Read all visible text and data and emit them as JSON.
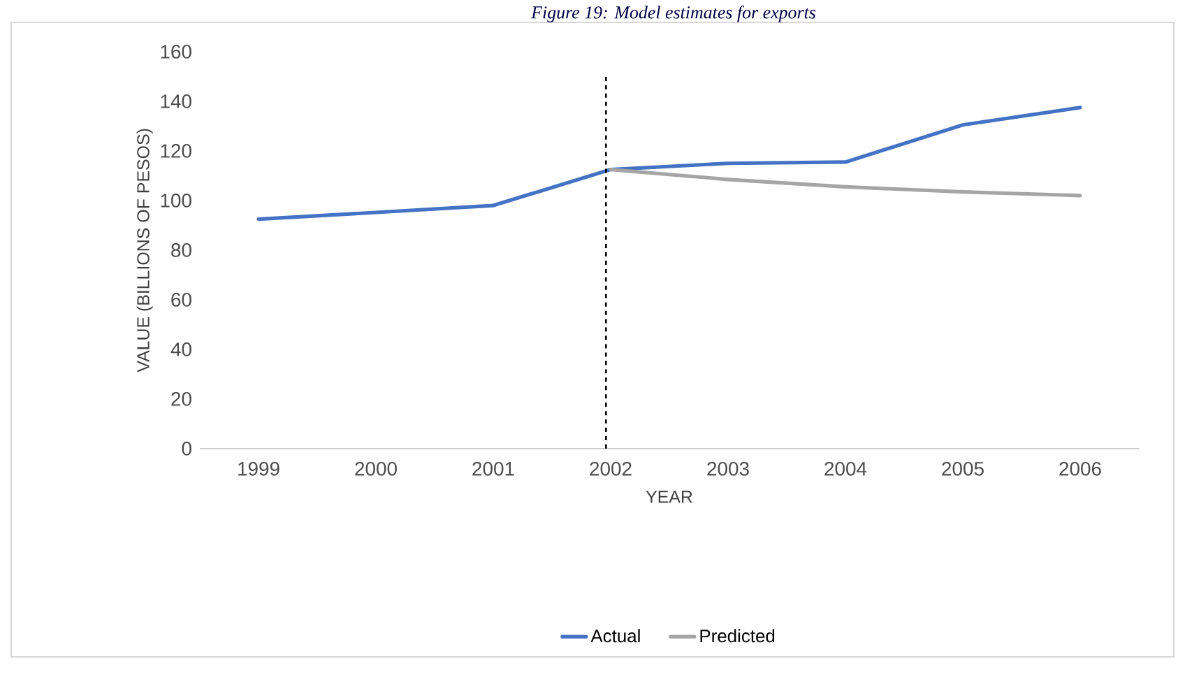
{
  "chart_data": {
    "type": "line",
    "title": "Figure 19: Model estimates for exports",
    "xlabel": "YEAR",
    "ylabel": "VALUE (BILLIONS OF PESOS)",
    "categories": [
      "1999",
      "2000",
      "2001",
      "2002",
      "2003",
      "2004",
      "2005",
      "2006"
    ],
    "series": [
      {
        "name": "Actual",
        "color": "#4472c4",
        "values": [
          92.5,
          95.2,
          98,
          112.5,
          115,
          115.5,
          130.5,
          137.5
        ]
      },
      {
        "name": "Predicted",
        "color": "#a5a5a5",
        "values": [
          null,
          null,
          null,
          112.5,
          108.5,
          105.5,
          103.5,
          102
        ]
      }
    ],
    "ylim": [
      0,
      160
    ],
    "yticks": [
      0,
      20,
      40,
      60,
      80,
      100,
      120,
      140,
      160
    ],
    "ref_lines": [
      {
        "axis": "x",
        "value": "2002",
        "color": "#000000",
        "line_style": "dashed"
      }
    ],
    "grid": false,
    "legend": "bottom",
    "marker": "none",
    "line_style": "solid"
  }
}
